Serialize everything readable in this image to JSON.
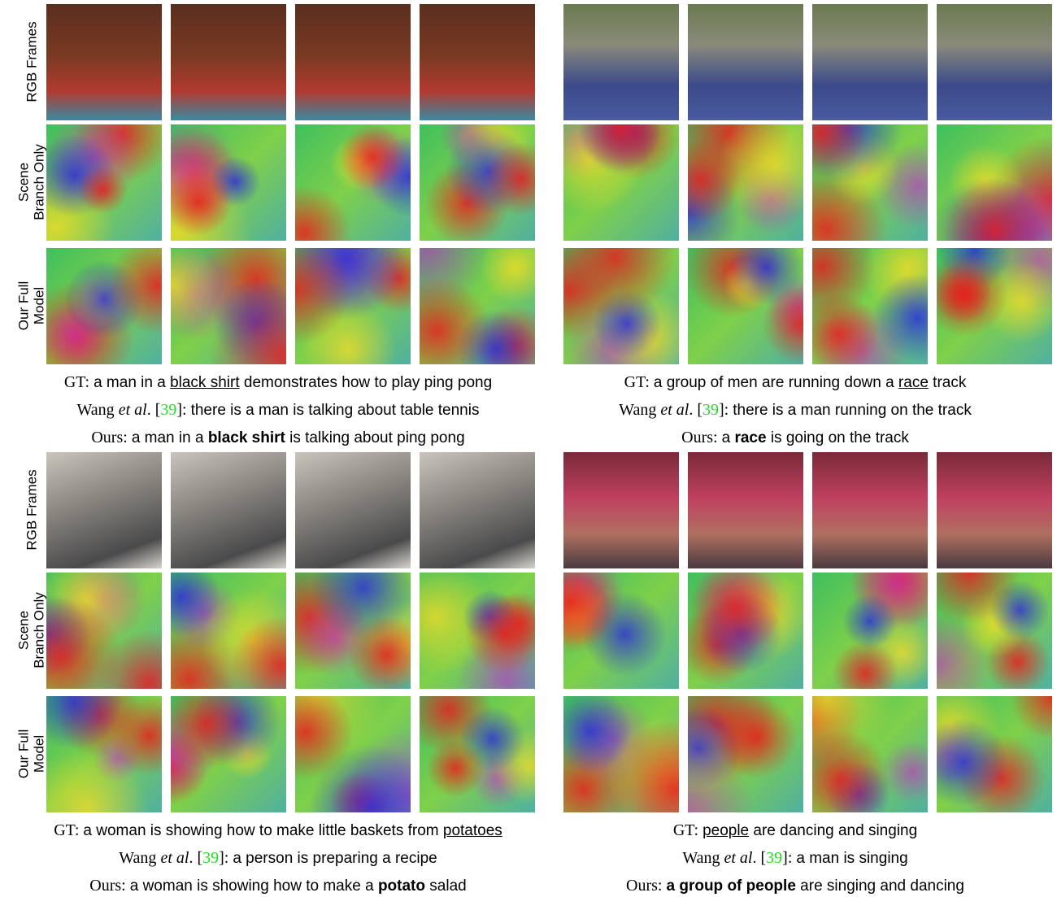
{
  "panels": [
    {
      "row_labels": [
        [
          "RGB Frames"
        ],
        [
          "Scene",
          "Branch Only"
        ],
        [
          "Our Full",
          "Model"
        ]
      ],
      "captions": [
        [
          {
            "t": "GT: ",
            "s": "serif"
          },
          {
            "t": "a man in a ",
            "s": "sans"
          },
          {
            "t": "black shirt",
            "s": "underline"
          },
          {
            "t": " demonstrates how to play ping pong",
            "s": "sans"
          }
        ],
        [
          {
            "t": "Wang ",
            "s": "serif"
          },
          {
            "t": "et al",
            "s": "italic"
          },
          {
            "t": ". [",
            "s": "serif"
          },
          {
            "t": "39",
            "s": "ref"
          },
          {
            "t": "]: ",
            "s": "serif"
          },
          {
            "t": "there is a man is talking about table tennis",
            "s": "sans"
          }
        ],
        [
          {
            "t": "Ours: ",
            "s": "serif"
          },
          {
            "t": "a man in a ",
            "s": "sans"
          },
          {
            "t": "black shirt",
            "s": "bold"
          },
          {
            "t": " is talking about ping pong",
            "s": "sans"
          }
        ]
      ]
    },
    {
      "captions": [
        [
          {
            "t": "GT: ",
            "s": "serif"
          },
          {
            "t": "a group of men are running down a ",
            "s": "sans"
          },
          {
            "t": "race",
            "s": "underline"
          },
          {
            "t": " track",
            "s": "sans"
          }
        ],
        [
          {
            "t": "Wang ",
            "s": "serif"
          },
          {
            "t": "et al",
            "s": "italic"
          },
          {
            "t": ". [",
            "s": "serif"
          },
          {
            "t": "39",
            "s": "ref"
          },
          {
            "t": "]: ",
            "s": "serif"
          },
          {
            "t": "there is a man running on the track",
            "s": "sans"
          }
        ],
        [
          {
            "t": "Ours: ",
            "s": "serif"
          },
          {
            "t": "a ",
            "s": "sans"
          },
          {
            "t": "race",
            "s": "bold"
          },
          {
            "t": " is going on the track",
            "s": "sans"
          }
        ]
      ]
    },
    {
      "row_labels": [
        [
          "RGB Frames"
        ],
        [
          "Scene",
          "Branch Only"
        ],
        [
          "Our Full",
          "Model"
        ]
      ],
      "captions": [
        [
          {
            "t": "GT: ",
            "s": "serif"
          },
          {
            "t": "a woman is showing how to make little baskets from ",
            "s": "sans"
          },
          {
            "t": "potatoes",
            "s": "underline"
          }
        ],
        [
          {
            "t": "Wang ",
            "s": "serif"
          },
          {
            "t": "et al",
            "s": "italic"
          },
          {
            "t": ". [",
            "s": "serif"
          },
          {
            "t": "39",
            "s": "ref"
          },
          {
            "t": "]: ",
            "s": "serif"
          },
          {
            "t": "a person is preparing a recipe",
            "s": "sans"
          }
        ],
        [
          {
            "t": "Ours: ",
            "s": "serif"
          },
          {
            "t": "a woman is showing how to make a ",
            "s": "sans"
          },
          {
            "t": "potato",
            "s": "bold"
          },
          {
            "t": " salad",
            "s": "sans"
          }
        ]
      ]
    },
    {
      "captions": [
        [
          {
            "t": "GT: ",
            "s": "serif"
          },
          {
            "t": "people",
            "s": "underline"
          },
          {
            "t": " are dancing and singing",
            "s": "sans"
          }
        ],
        [
          {
            "t": "Wang ",
            "s": "serif"
          },
          {
            "t": "et al",
            "s": "italic"
          },
          {
            "t": ". [",
            "s": "serif"
          },
          {
            "t": "39",
            "s": "ref"
          },
          {
            "t": "]: ",
            "s": "serif"
          },
          {
            "t": "a man is singing",
            "s": "sans"
          }
        ],
        [
          {
            "t": "Ours: ",
            "s": "serif"
          },
          {
            "t": "a group of people",
            "s": "bold"
          },
          {
            "t": " are singing and dancing",
            "s": "sans"
          }
        ]
      ]
    }
  ]
}
